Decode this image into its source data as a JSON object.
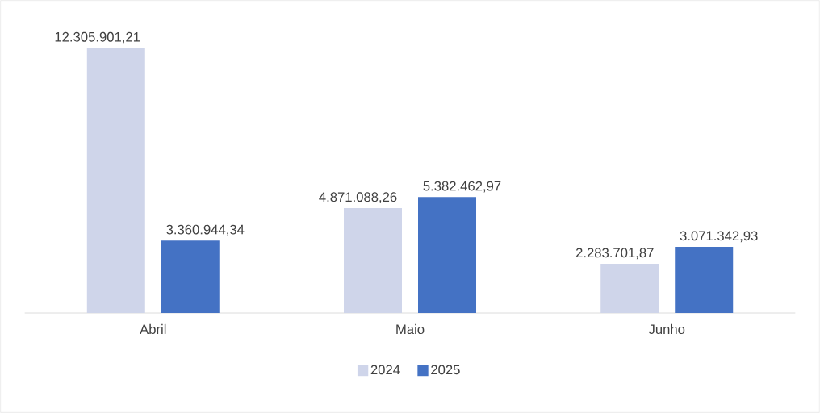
{
  "chart_data": {
    "type": "bar",
    "categories": [
      "Abril",
      "Maio",
      "Junho"
    ],
    "series": [
      {
        "name": "2024",
        "color": "#cfd5ea",
        "values": [
          12305901.21,
          4871088.26,
          2283701.87
        ],
        "value_labels": [
          "12.305.901,21",
          "4.871.088,26",
          "2.283.701,87"
        ]
      },
      {
        "name": "2025",
        "color": "#4472c4",
        "values": [
          3360944.34,
          5382462.97,
          3071342.93
        ],
        "value_labels": [
          "3.360.944,34",
          "5.382.462,97",
          "3.071.342,93"
        ]
      }
    ],
    "legend": "bottom"
  }
}
